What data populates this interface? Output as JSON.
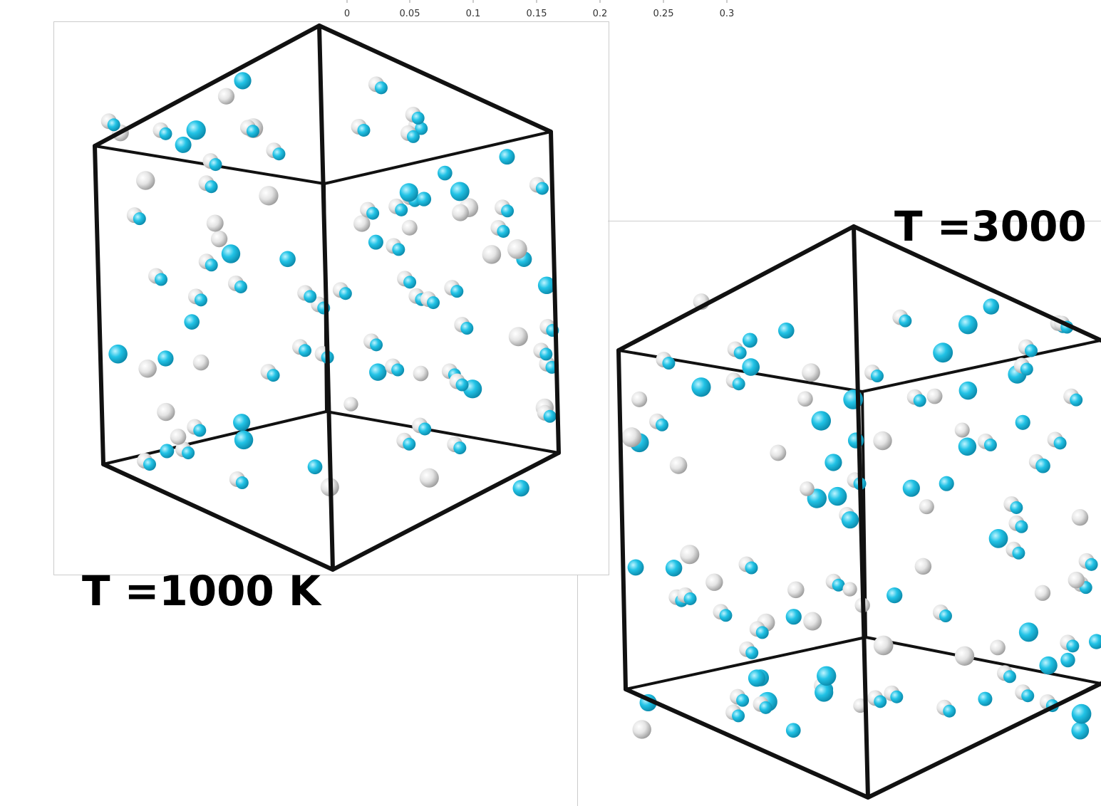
{
  "axis_fragment": {
    "ticks": [
      "0",
      "0.05",
      "0.1",
      "0.15",
      "0.2",
      "0.25",
      "0.3"
    ]
  },
  "panels": [
    {
      "label": "T =1000 K"
    },
    {
      "label": "T =3000"
    }
  ]
}
